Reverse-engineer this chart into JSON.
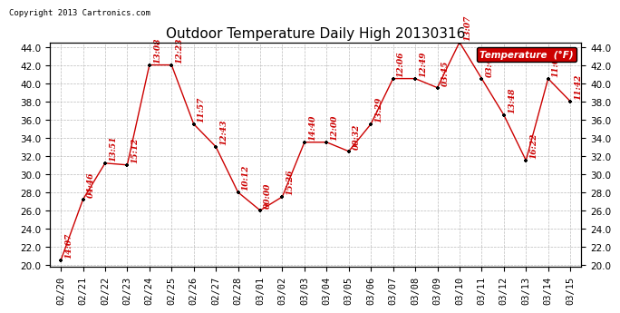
{
  "title": "Outdoor Temperature Daily High 20130316",
  "copyright": "Copyright 2013 Cartronics.com",
  "legend_label": "Temperature  (°F)",
  "legend_bg": "#cc0000",
  "legend_text_color": "white",
  "dates": [
    "02/20",
    "02/21",
    "02/22",
    "02/23",
    "02/24",
    "02/25",
    "02/26",
    "02/27",
    "02/28",
    "03/01",
    "03/02",
    "03/03",
    "03/04",
    "03/05",
    "03/06",
    "03/07",
    "03/08",
    "03/09",
    "03/10",
    "03/11",
    "03/12",
    "03/13",
    "03/14",
    "03/15"
  ],
  "values": [
    20.5,
    27.2,
    31.2,
    31.0,
    42.0,
    42.0,
    35.5,
    33.0,
    28.0,
    26.0,
    27.5,
    33.5,
    33.5,
    32.5,
    35.5,
    40.5,
    40.5,
    39.5,
    44.5,
    40.5,
    36.5,
    31.5,
    40.5,
    38.0
  ],
  "times": [
    "14:07",
    "04:46",
    "13:51",
    "15:12",
    "13:08",
    "12:23",
    "11:57",
    "12:43",
    "10:12",
    "00:00",
    "15:26",
    "14:40",
    "12:00",
    "00:32",
    "13:29",
    "12:06",
    "12:49",
    "03:45",
    "13:07",
    "03:45",
    "13:48",
    "16:22",
    "11:03",
    "11:42"
  ],
  "line_color": "#cc0000",
  "marker_color": "black",
  "bg_color": "white",
  "grid_color": "#bbbbbb",
  "ylim_min": 20.0,
  "ylim_max": 44.0,
  "yticks": [
    20.0,
    22.0,
    24.0,
    26.0,
    28.0,
    30.0,
    32.0,
    34.0,
    36.0,
    38.0,
    40.0,
    42.0,
    44.0
  ],
  "title_fontsize": 11,
  "annot_fontsize": 6.5,
  "tick_fontsize": 7.5,
  "copyright_fontsize": 6.5
}
